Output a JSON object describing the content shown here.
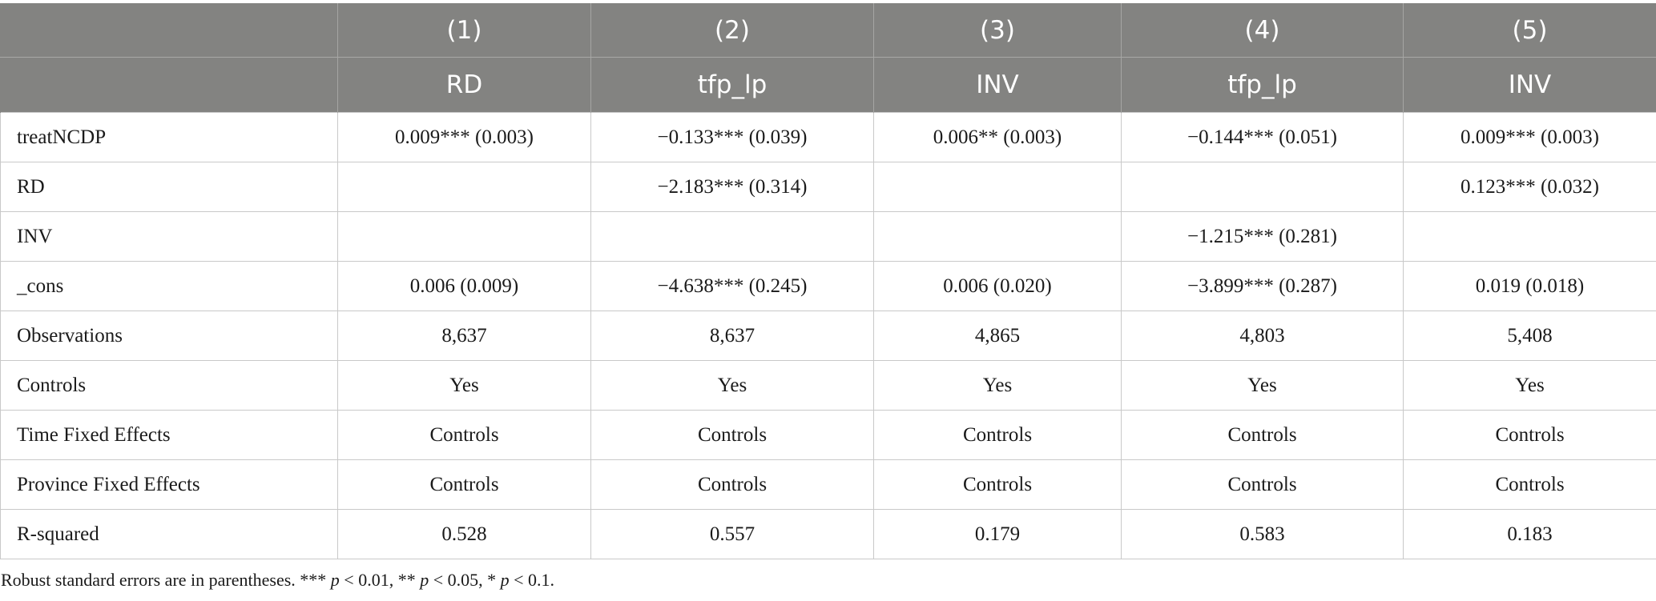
{
  "table": {
    "header_numbers": [
      "",
      "(1)",
      "(2)",
      "(3)",
      "(4)",
      "(5)"
    ],
    "header_vars": [
      "",
      "RD",
      "tfp_lp",
      "INV",
      "tfp_lp",
      "INV"
    ],
    "rows": [
      {
        "label": "treatNCDP",
        "cells": [
          "0.009*** (0.003)",
          "−0.133*** (0.039)",
          "0.006** (0.003)",
          "−0.144*** (0.051)",
          "0.009*** (0.003)"
        ]
      },
      {
        "label": "RD",
        "cells": [
          "",
          "−2.183*** (0.314)",
          "",
          "",
          "0.123*** (0.032)"
        ]
      },
      {
        "label": "INV",
        "cells": [
          "",
          "",
          "",
          "−1.215*** (0.281)",
          ""
        ]
      },
      {
        "label": "_cons",
        "cells": [
          "0.006 (0.009)",
          "−4.638*** (0.245)",
          "0.006 (0.020)",
          "−3.899*** (0.287)",
          "0.019 (0.018)"
        ]
      },
      {
        "label": "Observations",
        "cells": [
          "8,637",
          "8,637",
          "4,865",
          "4,803",
          "5,408"
        ]
      },
      {
        "label": "Controls",
        "cells": [
          "Yes",
          "Yes",
          "Yes",
          "Yes",
          "Yes"
        ]
      },
      {
        "label": "Time Fixed Effects",
        "cells": [
          "Controls",
          "Controls",
          "Controls",
          "Controls",
          "Controls"
        ]
      },
      {
        "label": "Province Fixed Effects",
        "cells": [
          "Controls",
          "Controls",
          "Controls",
          "Controls",
          "Controls"
        ]
      },
      {
        "label": "R-squared",
        "cells": [
          "0.528",
          "0.557",
          "0.179",
          "0.583",
          "0.183"
        ]
      }
    ]
  },
  "note": {
    "prefix": "Robust standard errors are in parentheses. *** ",
    "p1": "p",
    "t1": " < 0.01, ** ",
    "p2": "p",
    "t2": " < 0.05, * ",
    "p3": "p",
    "t3": " < 0.1."
  }
}
